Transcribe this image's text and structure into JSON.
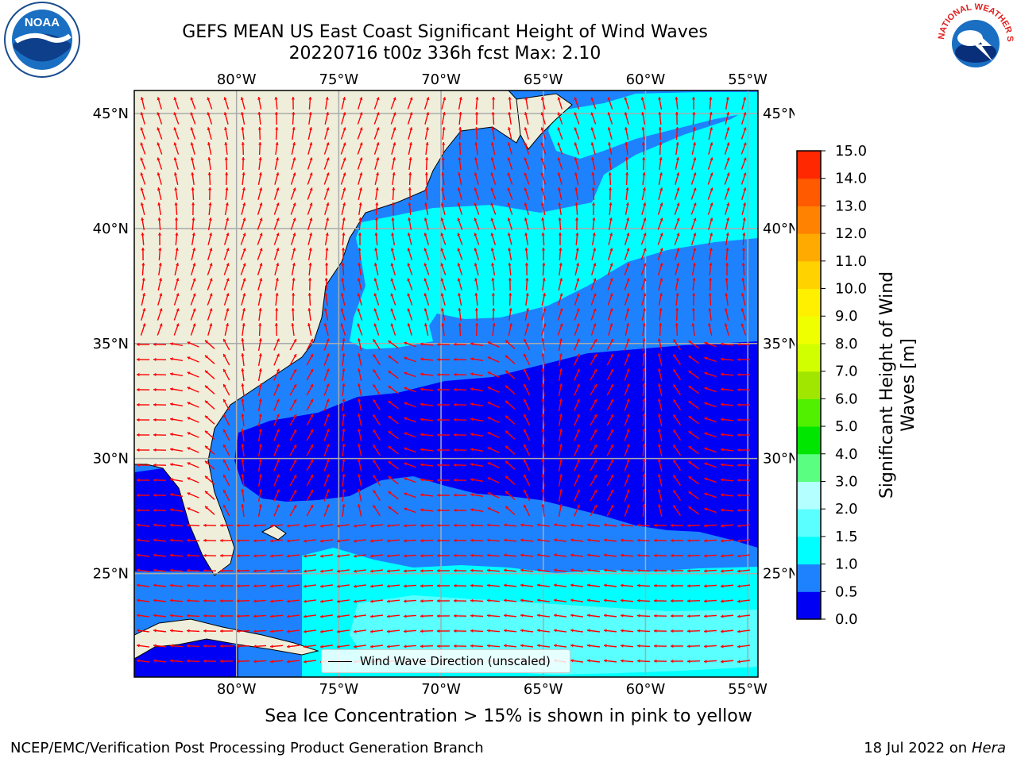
{
  "title": {
    "line1": "GEFS MEAN US East Coast Significant Height of Wind Waves",
    "line2": "20220716 t00z 336h fcst   Max: 2.10"
  },
  "logos": {
    "left": "NOAA",
    "right_text": "NATIONAL WEATHER SERVICE"
  },
  "map": {
    "lon_labels": [
      "80°W",
      "75°W",
      "70°W",
      "65°W",
      "60°W",
      "55°W"
    ],
    "lat_labels": [
      "45°N",
      "40°N",
      "35°N",
      "30°N",
      "25°N"
    ],
    "lon_values": [
      -80,
      -75,
      -70,
      -65,
      -60,
      -55
    ],
    "lat_values": [
      45,
      40,
      35,
      30,
      25
    ],
    "lon_range": [
      -85,
      -54.5
    ],
    "lat_range": [
      20.5,
      46
    ],
    "ocean_regions_m": [
      {
        "band": "0.0-0.5",
        "color": "#0000f5"
      },
      {
        "band": "0.5-1.0",
        "color": "#1e82ff"
      },
      {
        "band": "1.0-1.5",
        "color": "#00ffff"
      },
      {
        "band": "1.5-2.0",
        "color": "#5affff"
      },
      {
        "band": "2.0-3.0",
        "color": "#b4ffff"
      }
    ],
    "land_color": "#eeeedb",
    "arrow_color": "#ff0000",
    "legend_label": "Wind Wave Direction (unscaled)"
  },
  "colorbar": {
    "label_line1": "Significant Height of Wind",
    "label_line2": "Waves [m]",
    "ticks": [
      "0.0",
      "0.5",
      "1.0",
      "1.5",
      "2.0",
      "3.0",
      "4.0",
      "5.0",
      "6.0",
      "7.0",
      "8.0",
      "9.0",
      "10.0",
      "11.0",
      "12.0",
      "13.0",
      "14.0",
      "15.0"
    ],
    "colors": [
      "#0000f5",
      "#1e82ff",
      "#00ffff",
      "#5affff",
      "#b4ffff",
      "#5aff82",
      "#00e600",
      "#50f000",
      "#a0e600",
      "#d2ff00",
      "#f0ff00",
      "#fff000",
      "#ffd200",
      "#ffaa00",
      "#ff8200",
      "#ff5a00",
      "#ff2800"
    ]
  },
  "note": "Sea Ice Concentration > 15% is shown in pink to yellow",
  "footer": {
    "left": "NCEP/EMC/Verification Post Processing Product Generation Branch",
    "right_date": "18 Jul 2022 on ",
    "right_host": "Hera"
  }
}
